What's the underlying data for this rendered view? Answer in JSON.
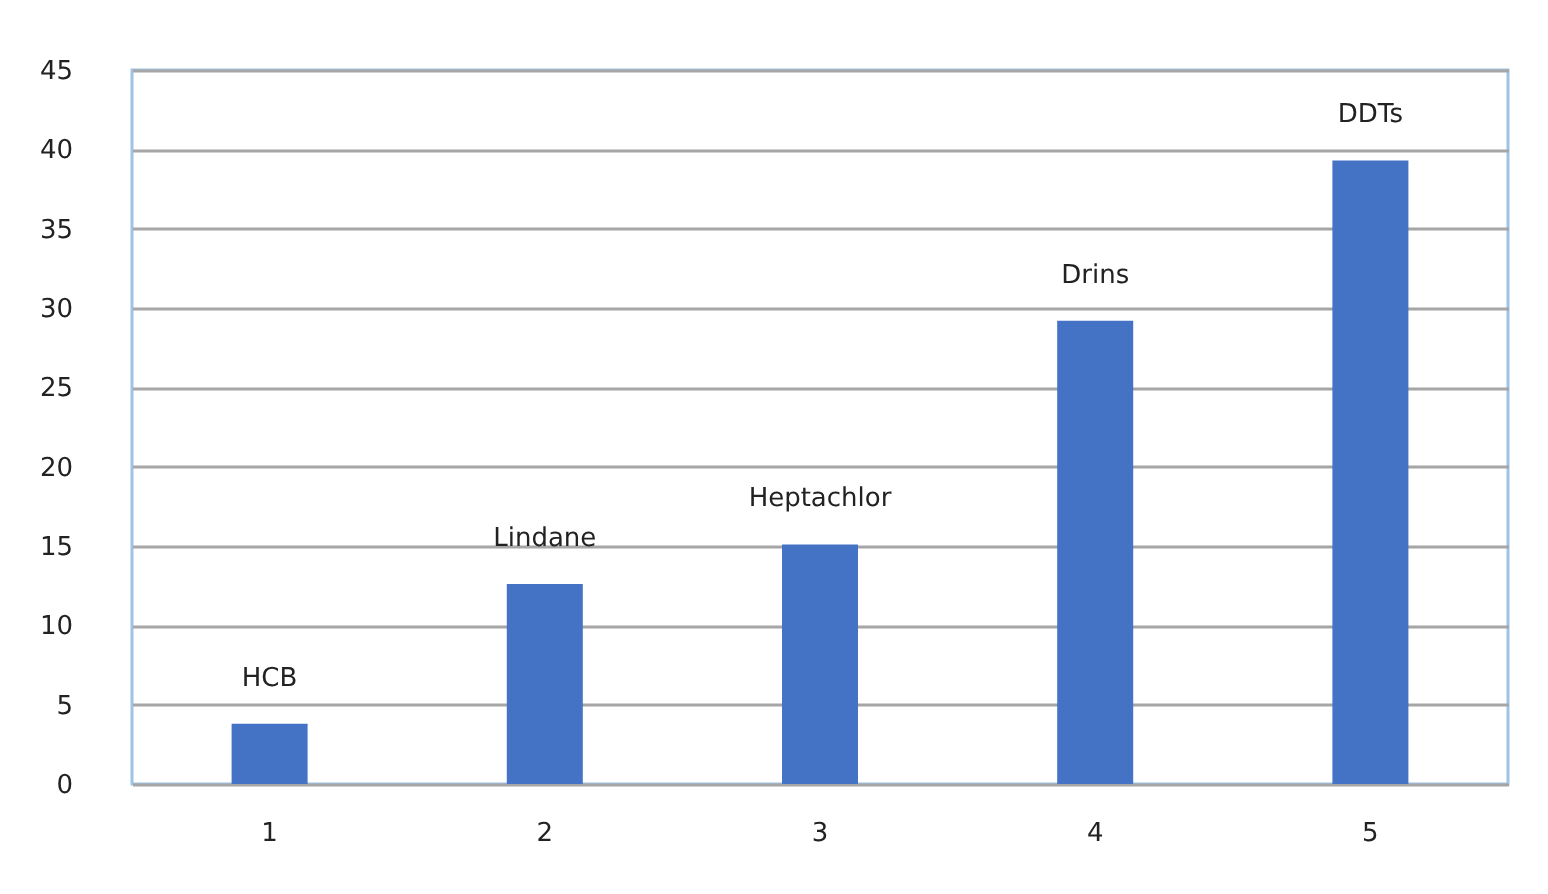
{
  "chart_data": {
    "type": "bar",
    "categories": [
      "1",
      "2",
      "3",
      "4",
      "5"
    ],
    "values": [
      3.8,
      12.6,
      15.1,
      29.2,
      39.3
    ],
    "color": "#4472c4",
    "ylim": [
      0,
      45
    ],
    "yticks": [
      0,
      5,
      10,
      15,
      20,
      25,
      30,
      35,
      40,
      45
    ],
    "grid": "y",
    "annotations": [
      {
        "text": "HCB",
        "x": "1",
        "y": 3.8
      },
      {
        "text": "Lindane",
        "x": "2",
        "y": 12.6
      },
      {
        "text": "Heptachlor",
        "x": "3",
        "y": 15.1
      },
      {
        "text": "Drins",
        "x": "4",
        "y": 29.2
      },
      {
        "text": "DDTs",
        "x": "5",
        "y": 39.3
      }
    ]
  }
}
